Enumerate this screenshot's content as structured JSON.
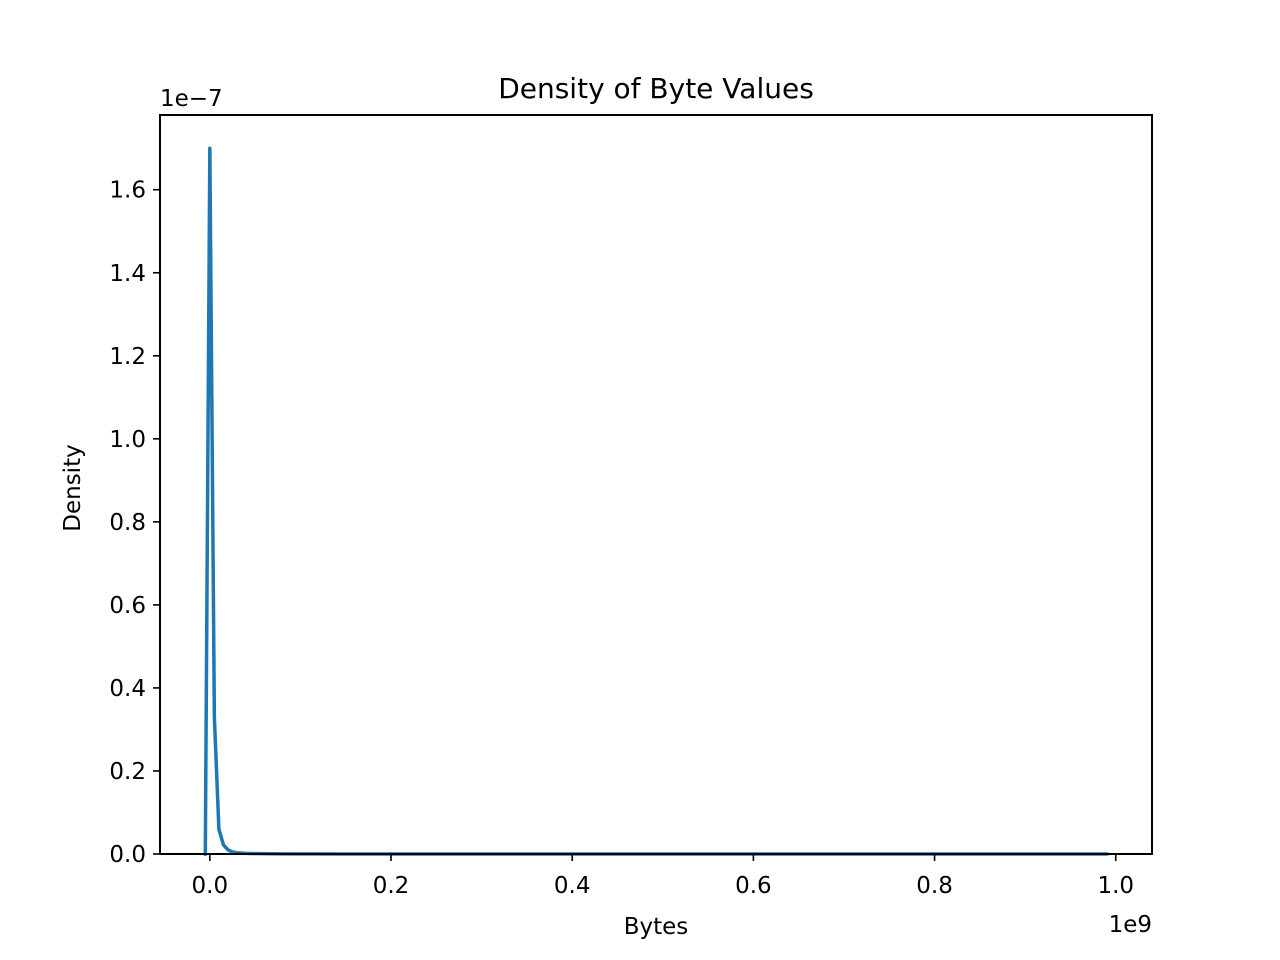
{
  "chart_data": {
    "type": "line",
    "title": "Density of Byte Values",
    "xlabel": "Bytes",
    "ylabel": "Density",
    "x_offset_label": "1e9",
    "y_offset_label": "1e−7",
    "xlim": [
      -55000000,
      1040000000
    ],
    "ylim": [
      0,
      1.78e-07
    ],
    "x_ticks": [
      0,
      200000000,
      400000000,
      600000000,
      800000000,
      1000000000
    ],
    "x_tick_labels": [
      "0.0",
      "0.2",
      "0.4",
      "0.6",
      "0.8",
      "1.0"
    ],
    "y_ticks": [
      0,
      2e-08,
      4e-08,
      6e-08,
      8e-08,
      1e-07,
      1.2e-07,
      1.4e-07,
      1.6e-07
    ],
    "y_tick_labels": [
      "0.0",
      "0.2",
      "0.4",
      "0.6",
      "0.8",
      "1.0",
      "1.2",
      "1.4",
      "1.6"
    ],
    "grid": false,
    "series": [
      {
        "color": "#1f77b4",
        "x": [
          -5000000,
          0,
          5000000,
          10000000,
          15000000,
          20000000,
          25000000,
          30000000,
          40000000,
          55000000,
          80000000,
          150000000,
          300000000,
          500000000,
          700000000,
          900000000,
          990000000
        ],
        "y": [
          0,
          1.7e-07,
          3.3e-08,
          6e-09,
          2.2e-09,
          1e-09,
          5e-10,
          3e-10,
          1.5e-10,
          8e-11,
          4e-11,
          1.5e-11,
          5e-12,
          2e-12,
          1e-12,
          5e-13,
          0
        ]
      }
    ]
  }
}
